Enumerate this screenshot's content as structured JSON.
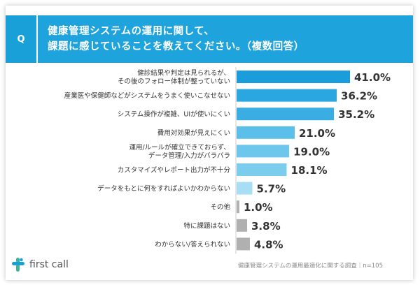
{
  "header": {
    "q_label": "Q",
    "title_line1": "健康管理システムの運用に関して、",
    "title_line2": "課題に感じていることを教えてください。（複数回答）"
  },
  "chart_data": {
    "type": "bar",
    "orientation": "horizontal",
    "categories": [
      [
        "健診結果や判定は見られるが、",
        "その後のフォロー体制が整っていない"
      ],
      [
        "産業医や保健師などがシステムをうまく使いこなせない"
      ],
      [
        "システム操作が複雑、UIが使いにくい"
      ],
      [
        "費用対効果が見えにくい"
      ],
      [
        "運用/ルールが確立できておらず、",
        "データ管理/入力がバラバラ"
      ],
      [
        "カスタマイズやレポート出力が不十分"
      ],
      [
        "データをもとに何をすればよいかわからない"
      ],
      [
        "その他"
      ],
      [
        "特に課題はない"
      ],
      [
        "わからない/答えられない"
      ]
    ],
    "values": [
      41.0,
      36.2,
      35.2,
      21.0,
      19.0,
      18.1,
      5.7,
      1.0,
      3.8,
      4.8
    ],
    "value_labels": [
      "41.0%",
      "36.2%",
      "35.2%",
      "21.0%",
      "19.0%",
      "18.1%",
      "5.7%",
      "1.0%",
      "3.8%",
      "4.8%"
    ],
    "colors": [
      "#1b9ddb",
      "#2aa6e0",
      "#3aaee3",
      "#5bbfea",
      "#6dc6ec",
      "#7ccded",
      "#a8def4",
      "#b0b0b0",
      "#b0b0b0",
      "#b0b0b0"
    ],
    "xlim": [
      0,
      41.0
    ]
  },
  "footer": {
    "logo_text": "first call",
    "source": "健康管理システムの運用最適化に関する調査｜n=105"
  },
  "colors": {
    "header_bg": "#1ea3dc",
    "q_bg": "#1aa0d8",
    "logo_green": "#3cb4a0",
    "logo_blue": "#1a9fd9"
  }
}
